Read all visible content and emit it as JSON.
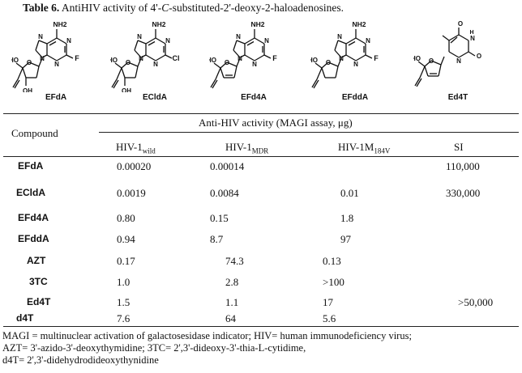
{
  "caption": {
    "label": "Table 6.",
    "text_before": " AntiHIV activity of 4'-",
    "italic": "C",
    "text_after": "-substituted-2'-deoxy-2-haloadenosines."
  },
  "structures": [
    {
      "name": "EFdA"
    },
    {
      "name": "ECldA"
    },
    {
      "name": "EFd4A"
    },
    {
      "name": "EFddA"
    },
    {
      "name": "Ed4T"
    }
  ],
  "atom_labels": {
    "nh2": "NH2",
    "n": "N",
    "f": "F",
    "cl": "Cl",
    "oh": "OH",
    "ho": "HO",
    "o": "O",
    "h": "H"
  },
  "table": {
    "compound_header": "Compound",
    "group_header": "Anti-HIV activity (MAGI assay, μg)",
    "col_wild_main": "HIV-1",
    "col_wild_sub": "wild",
    "col_mdr_main": "HIV-1",
    "col_mdr_sub": "MDR",
    "col_m184_main": "HIV-1M",
    "col_m184_sub": "184V",
    "col_si": "SI",
    "rows": [
      {
        "name": "EFdA",
        "wild": "0.00020",
        "mdr": "0.00014",
        "m184": "",
        "si": "110,000"
      },
      {
        "name": "ECldA",
        "wild": "0.0019",
        "mdr": "0.0084",
        "m184": "0.01",
        "si": "330,000"
      },
      {
        "name": "EFd4A",
        "wild": "0.80",
        "mdr": "0.15",
        "m184": "1.8",
        "si": ""
      },
      {
        "name": "EFddA",
        "wild": "0.94",
        "mdr": "8.7",
        "m184": "97",
        "si": ""
      },
      {
        "name": "AZT",
        "wild": "0.17",
        "mdr": "74.3",
        "m184": "0.13",
        "si": ""
      },
      {
        "name": "3TC",
        "wild": "1.0",
        "mdr": "2.8",
        "m184": ">100",
        "si": ""
      },
      {
        "name": "Ed4T",
        "wild": "1.5",
        "mdr": "1.1",
        "m184": "17",
        "si": ">50,000"
      },
      {
        "name": "d4T",
        "wild": "7.6",
        "mdr": "64",
        "m184": "5.6",
        "si": ""
      }
    ]
  },
  "footnote": [
    "MAGI = multinuclear activation of galactosesidase indicator; HIV= human immunodeficiency virus;",
    "AZT= 3'-azido-3'-deoxythymidine; 3TC= 2',3'-dideoxy-3'-thia-L-cytidime,",
    "d4T= 2',3'-didehydrodideoxythynidine"
  ]
}
